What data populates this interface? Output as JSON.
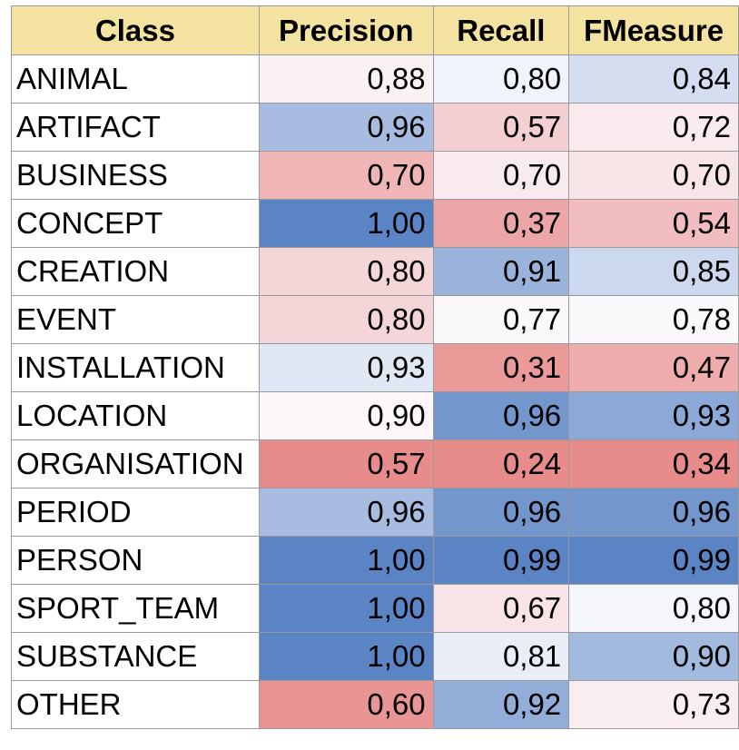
{
  "chart_data": {
    "type": "heatmap",
    "columns": [
      "Class",
      "Precision",
      "Recall",
      "FMeasure"
    ],
    "rows": [
      {
        "class": "ANIMAL",
        "values": [
          "0,88",
          "0,80",
          "0,84"
        ]
      },
      {
        "class": "ARTIFACT",
        "values": [
          "0,96",
          "0,57",
          "0,72"
        ]
      },
      {
        "class": "BUSINESS",
        "values": [
          "0,70",
          "0,70",
          "0,70"
        ]
      },
      {
        "class": "CONCEPT",
        "values": [
          "1,00",
          "0,37",
          "0,54"
        ]
      },
      {
        "class": "CREATION",
        "values": [
          "0,80",
          "0,91",
          "0,85"
        ]
      },
      {
        "class": "EVENT",
        "values": [
          "0,80",
          "0,77",
          "0,78"
        ]
      },
      {
        "class": "INSTALLATION",
        "values": [
          "0,93",
          "0,31",
          "0,47"
        ]
      },
      {
        "class": "LOCATION",
        "values": [
          "0,90",
          "0,96",
          "0,93"
        ]
      },
      {
        "class": "ORGANISATION",
        "values": [
          "0,57",
          "0,24",
          "0,34"
        ]
      },
      {
        "class": "PERIOD",
        "values": [
          "0,96",
          "0,96",
          "0,96"
        ]
      },
      {
        "class": "PERSON",
        "values": [
          "1,00",
          "0,99",
          "0,99"
        ]
      },
      {
        "class": "SPORT_TEAM",
        "values": [
          "1,00",
          "0,67",
          "0,80"
        ]
      },
      {
        "class": "SUBSTANCE",
        "values": [
          "1,00",
          "0,81",
          "0,90"
        ]
      },
      {
        "class": "OTHER",
        "values": [
          "0,60",
          "0,92",
          "0,73"
        ]
      }
    ],
    "colors": {
      "header_background": "#f4e3a0",
      "high": "#5b84c4",
      "mid": "#fcfcff",
      "low": "#e88b8b"
    }
  }
}
